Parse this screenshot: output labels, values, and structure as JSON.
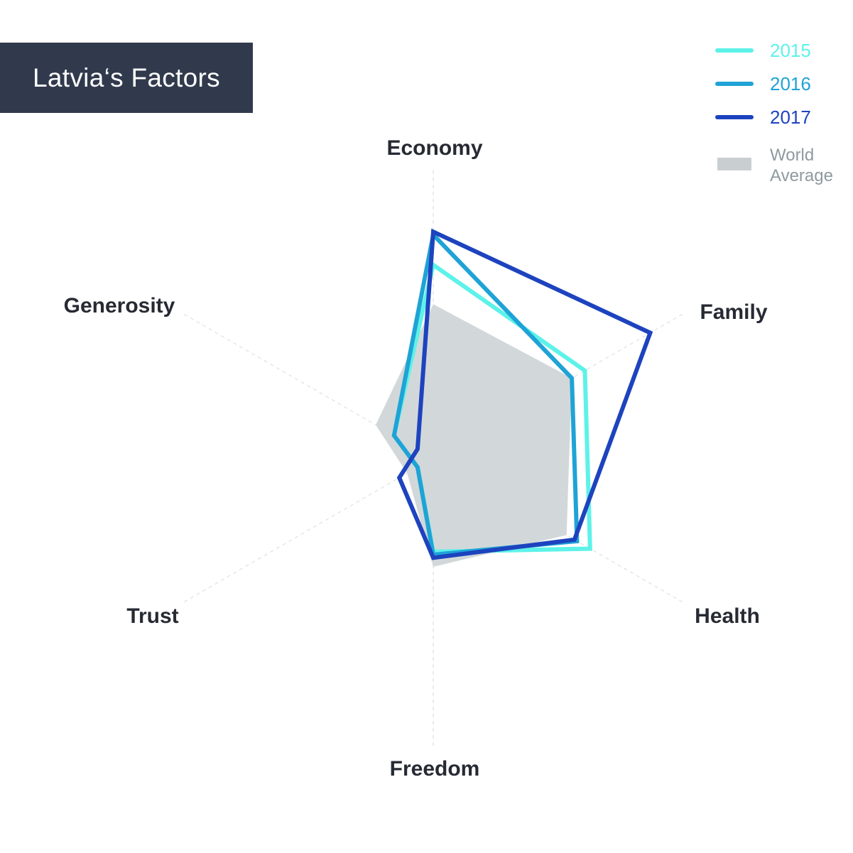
{
  "title": "Latvia‘s Factors",
  "chart_data": {
    "type": "radar",
    "title": "Latvia‘s Factors",
    "axes": [
      "Economy",
      "Family",
      "Health",
      "Freedom",
      "Trust",
      "Generosity"
    ],
    "max": 1.0,
    "series": [
      {
        "name": "2015",
        "color": "#5df2e9",
        "values": [
          0.64,
          0.58,
          0.6,
          0.31,
          0.06,
          0.15
        ]
      },
      {
        "name": "2016",
        "color": "#1fa3d6",
        "values": [
          0.74,
          0.53,
          0.55,
          0.32,
          0.06,
          0.15
        ]
      },
      {
        "name": "2017",
        "color": "#1d43be",
        "values": [
          0.75,
          0.83,
          0.54,
          0.33,
          0.13,
          0.06
        ]
      },
      {
        "name": "World Average",
        "color": "#d2d8d9",
        "fill": true,
        "values": [
          0.51,
          0.53,
          0.51,
          0.36,
          0.1,
          0.22
        ]
      }
    ],
    "grid": false,
    "legend_position": "top-right"
  },
  "legend": [
    {
      "label": "2015",
      "color": "#5df2e9",
      "kind": "line"
    },
    {
      "label": "2016",
      "color": "#1fa3d6",
      "kind": "line"
    },
    {
      "label": "2017",
      "color": "#1d43be",
      "kind": "line"
    },
    {
      "label": "World",
      "label2": "Average",
      "color": "#c9cfd1",
      "text_color": "#8f9a9d",
      "kind": "box"
    }
  ]
}
